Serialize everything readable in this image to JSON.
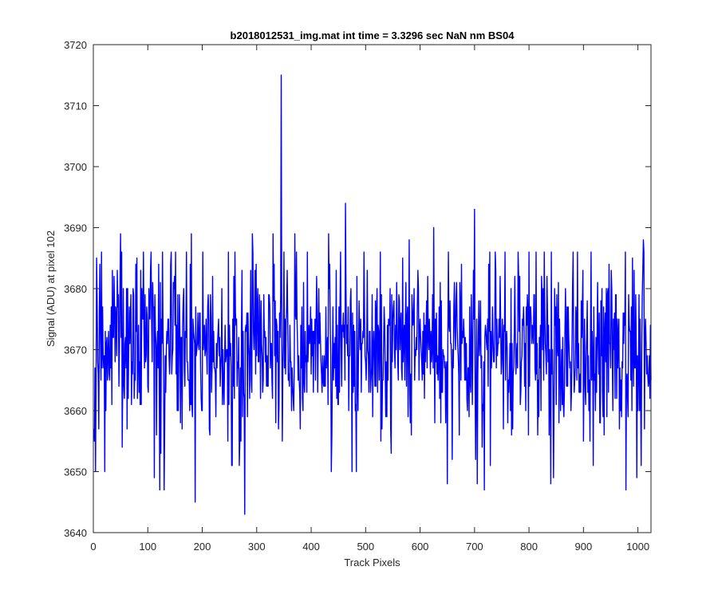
{
  "chart_data": {
    "type": "line",
    "title": "b2018012531_img.mat int time = 3.3296 sec  NaN nm BS04",
    "xlabel": "Track Pixels",
    "ylabel": "Signal (ADU) at pixel 102",
    "xlim": [
      0,
      1024
    ],
    "ylim": [
      3640,
      3720
    ],
    "xticks": [
      0,
      100,
      200,
      300,
      400,
      500,
      600,
      700,
      800,
      900,
      1000
    ],
    "yticks": [
      3640,
      3650,
      3660,
      3670,
      3680,
      3690,
      3700,
      3710,
      3720
    ],
    "grid": false,
    "legend": "none",
    "series": [
      {
        "color": "#0000ff",
        "x_start": 1,
        "x_step": 1,
        "count": 1024,
        "mean": 3670.5,
        "noise_std": 7.5,
        "y_min": 3643,
        "y_max": 3715,
        "notable_points": [
          {
            "x": 2,
            "y": 3655
          },
          {
            "x": 4,
            "y": 3650
          },
          {
            "x": 7,
            "y": 3678
          },
          {
            "x": 12,
            "y": 3684
          },
          {
            "x": 15,
            "y": 3686
          },
          {
            "x": 50,
            "y": 3689
          },
          {
            "x": 53,
            "y": 3654
          },
          {
            "x": 112,
            "y": 3649
          },
          {
            "x": 122,
            "y": 3647
          },
          {
            "x": 130,
            "y": 3647
          },
          {
            "x": 180,
            "y": 3689
          },
          {
            "x": 187,
            "y": 3645
          },
          {
            "x": 255,
            "y": 3651
          },
          {
            "x": 268,
            "y": 3651
          },
          {
            "x": 278,
            "y": 3643
          },
          {
            "x": 292,
            "y": 3689
          },
          {
            "x": 330,
            "y": 3689
          },
          {
            "x": 340,
            "y": 3657
          },
          {
            "x": 345,
            "y": 3715
          },
          {
            "x": 347,
            "y": 3655
          },
          {
            "x": 350,
            "y": 3686
          },
          {
            "x": 370,
            "y": 3689
          },
          {
            "x": 432,
            "y": 3689
          },
          {
            "x": 437,
            "y": 3650
          },
          {
            "x": 463,
            "y": 3694
          },
          {
            "x": 475,
            "y": 3650
          },
          {
            "x": 580,
            "y": 3688
          },
          {
            "x": 625,
            "y": 3690
          },
          {
            "x": 650,
            "y": 3648
          },
          {
            "x": 700,
            "y": 3693
          },
          {
            "x": 705,
            "y": 3648
          },
          {
            "x": 718,
            "y": 3647
          },
          {
            "x": 800,
            "y": 3686
          },
          {
            "x": 840,
            "y": 3648
          },
          {
            "x": 845,
            "y": 3649
          },
          {
            "x": 978,
            "y": 3647
          },
          {
            "x": 998,
            "y": 3649
          },
          {
            "x": 1010,
            "y": 3688
          },
          {
            "x": 1022,
            "y": 3662
          }
        ]
      }
    ]
  }
}
